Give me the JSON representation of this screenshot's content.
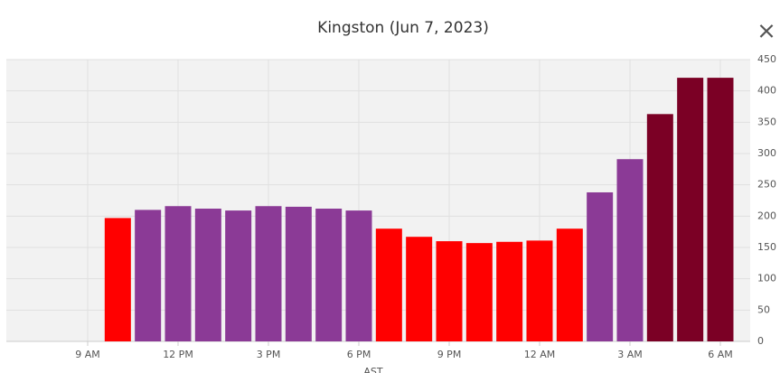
{
  "chart_data": {
    "type": "bar",
    "title": "Kingston (Jun 7, 2023)",
    "categories": [
      "9 AM",
      null,
      null,
      "12 PM",
      null,
      null,
      "3 PM",
      null,
      null,
      "6 PM",
      null,
      null,
      "9 PM",
      null,
      null,
      "12 AM",
      null,
      null,
      "3 AM",
      null,
      null,
      "6 AM"
    ],
    "values": [
      null,
      197,
      210,
      216,
      212,
      209,
      216,
      215,
      212,
      209,
      180,
      167,
      160,
      157,
      159,
      161,
      180,
      238,
      291,
      363,
      421,
      421
    ],
    "colors": [
      null,
      "#ff0000",
      "#8b3a96",
      "#8b3a96",
      "#8b3a96",
      "#8b3a96",
      "#8b3a96",
      "#8b3a96",
      "#8b3a96",
      "#8b3a96",
      "#ff0000",
      "#ff0000",
      "#ff0000",
      "#ff0000",
      "#ff0000",
      "#ff0000",
      "#ff0000",
      "#8b3a96",
      "#8b3a96",
      "#7b0025",
      "#7b0025",
      "#7b0025"
    ],
    "x_label": "AST",
    "ylim": [
      0,
      450
    ],
    "yticks": [
      0,
      50,
      100,
      150,
      200,
      250,
      300,
      350,
      400,
      450
    ],
    "grid": true
  },
  "close": "×"
}
